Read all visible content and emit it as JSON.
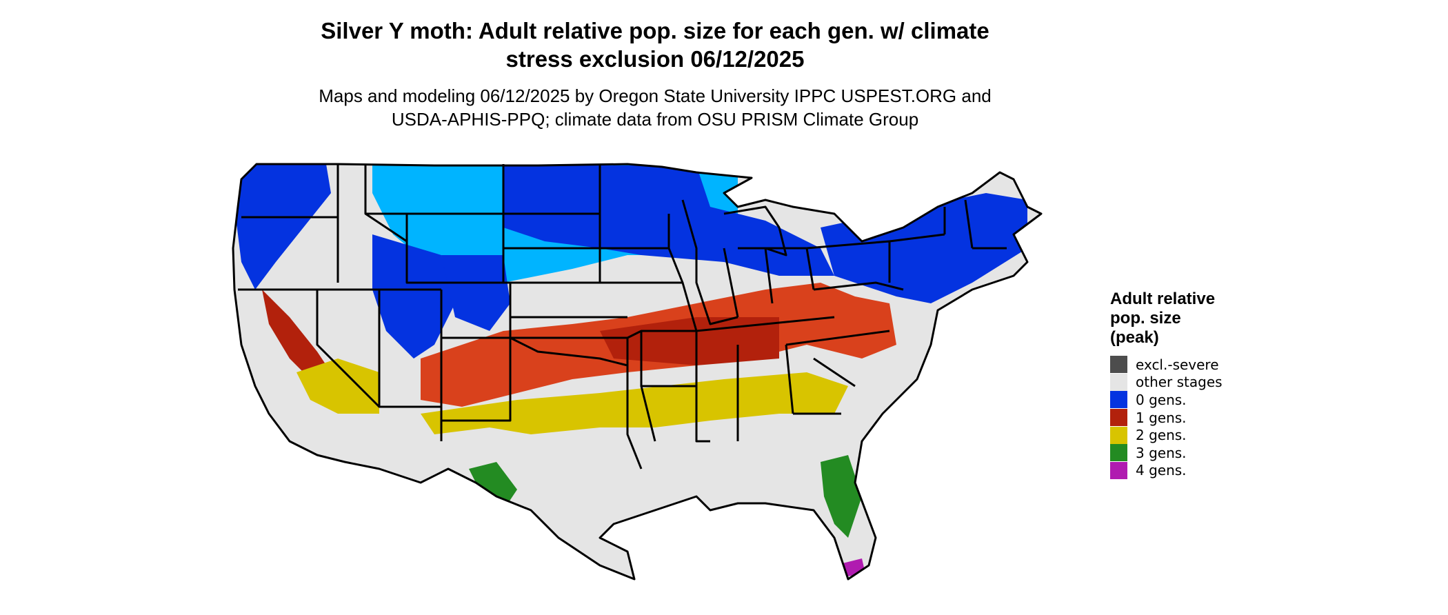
{
  "title": {
    "line1": "Silver Y moth: Adult relative pop. size for each gen. w/ climate",
    "line2": "stress exclusion 06/12/2025"
  },
  "subtitle": {
    "line1": "Maps and modeling 06/12/2025 by Oregon State University IPPC USPEST.ORG and",
    "line2": "USDA-APHIS-PPQ; climate data from OSU PRISM Climate Group"
  },
  "legend": {
    "title_lines": [
      "Adult relative",
      "pop. size",
      "(peak)"
    ],
    "items": [
      {
        "label": "excl.-severe",
        "color": "#4d4d4d"
      },
      {
        "label": "other stages",
        "color": "#e5e5e5"
      },
      {
        "label": "0 gens.",
        "color": "#0433e0"
      },
      {
        "label": "1 gens.",
        "color": "#b2210c"
      },
      {
        "label": "2 gens.",
        "color": "#d8c400"
      },
      {
        "label": "3 gens.",
        "color": "#238b22"
      },
      {
        "label": "4 gens.",
        "color": "#b01bb0"
      }
    ]
  },
  "map": {
    "region": "contiguous United States",
    "state_borders": true,
    "colors": {
      "background": "#e5e5e5",
      "zero_gens_dark": "#0433e0",
      "zero_gens_light": "#00b4ff",
      "one_gen": "#b2210c",
      "one_gen_east": "#d9411c",
      "two_gens": "#d8c400",
      "three_gens": "#238b22",
      "four_gens": "#b01bb0"
    }
  }
}
